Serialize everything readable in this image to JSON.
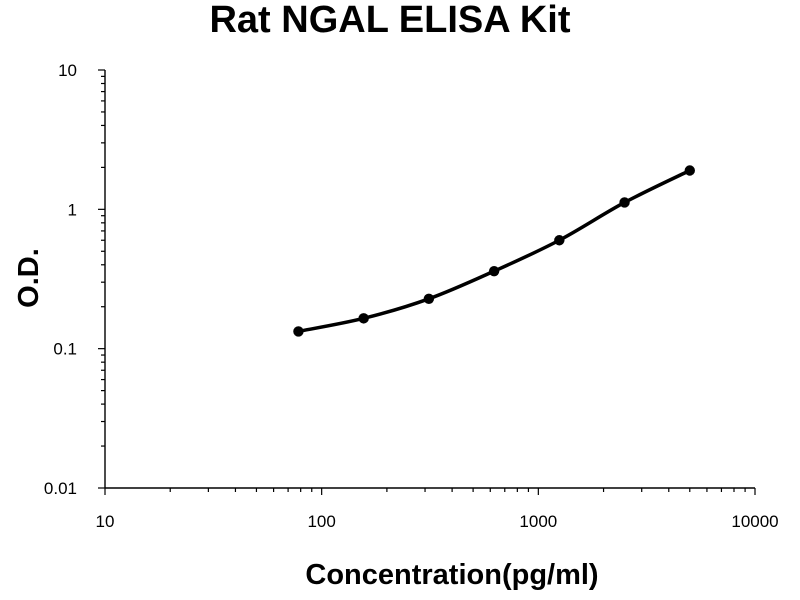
{
  "chart_data": {
    "type": "scatter",
    "title": "Rat NGAL ELISA Kit",
    "xlabel": "Concentration(pg/ml)",
    "ylabel": "O.D.",
    "xscale": "log",
    "yscale": "log",
    "xlim": [
      10,
      10000
    ],
    "ylim": [
      0.01,
      10
    ],
    "x_ticks": [
      {
        "value": 10,
        "label": "10"
      },
      {
        "value": 100,
        "label": "100"
      },
      {
        "value": 1000,
        "label": "1000"
      },
      {
        "value": 10000,
        "label": "10000"
      }
    ],
    "y_ticks": [
      {
        "value": 0.01,
        "label": "0.01"
      },
      {
        "value": 0.1,
        "label": "0.1"
      },
      {
        "value": 1,
        "label": "1"
      },
      {
        "value": 10,
        "label": "10"
      }
    ],
    "grid": false,
    "legend": "none",
    "series": [
      {
        "x": [
          78.125,
          156.25,
          312.5,
          625,
          1250,
          2500,
          5000
        ],
        "y": [
          0.133,
          0.165,
          0.228,
          0.36,
          0.6,
          1.12,
          1.9
        ],
        "fit_curve": true,
        "color": "#000000"
      }
    ]
  }
}
